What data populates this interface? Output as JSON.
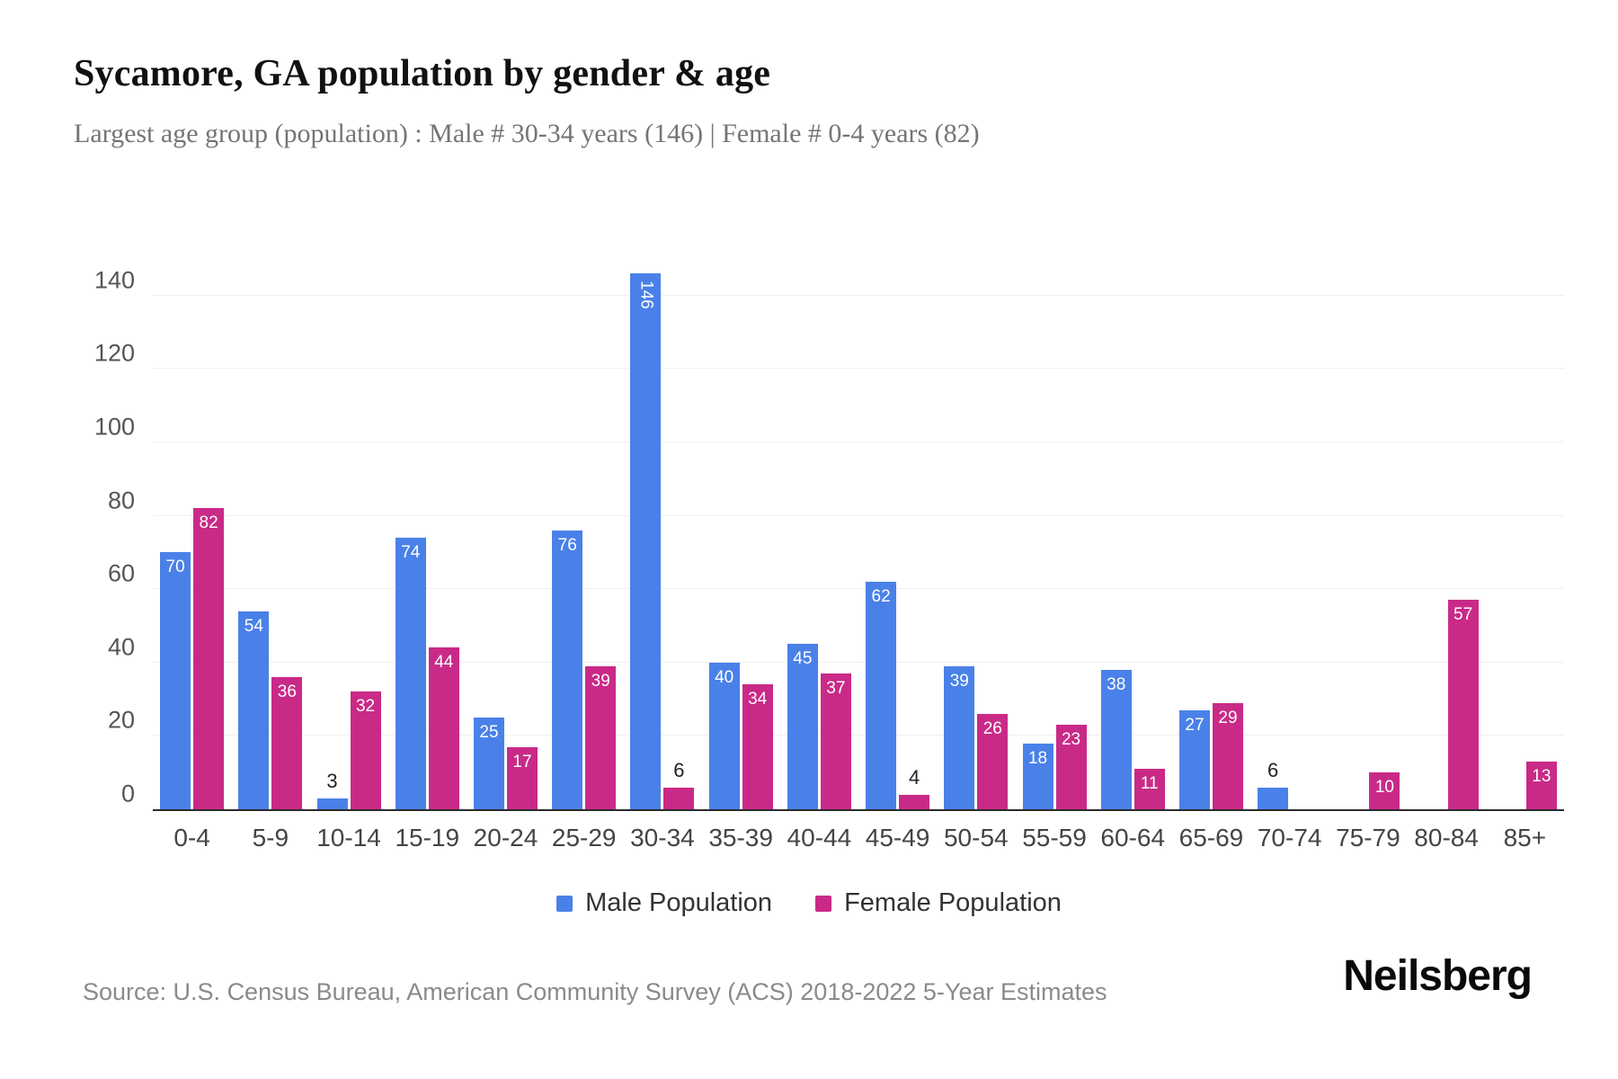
{
  "header": {
    "title": "Sycamore, GA population by gender & age",
    "subtitle": "Largest age group (population) : Male # 30-34 years (146) | Female # 0-4 years (82)"
  },
  "chart_data": {
    "type": "bar",
    "title": "Sycamore, GA population by gender & age",
    "categories": [
      "0-4",
      "5-9",
      "10-14",
      "15-19",
      "20-24",
      "25-29",
      "30-34",
      "35-39",
      "40-44",
      "45-49",
      "50-54",
      "55-59",
      "60-64",
      "65-69",
      "70-74",
      "75-79",
      "80-84",
      "85+"
    ],
    "series": [
      {
        "name": "Male Population",
        "color": "#4A81E8",
        "values": [
          70,
          54,
          3,
          74,
          25,
          76,
          146,
          40,
          45,
          62,
          39,
          18,
          38,
          27,
          6,
          0,
          0,
          0
        ]
      },
      {
        "name": "Female Population",
        "color": "#C92A87",
        "values": [
          82,
          36,
          32,
          44,
          17,
          39,
          6,
          34,
          37,
          4,
          26,
          23,
          11,
          29,
          0,
          10,
          57,
          13
        ]
      }
    ],
    "xlabel": "",
    "ylabel": "",
    "ylim": [
      0,
      150
    ],
    "yticks": [
      0,
      20,
      40,
      60,
      80,
      100,
      120,
      140
    ],
    "grid": true,
    "legend_position": "bottom"
  },
  "footer": {
    "source": "Source: U.S. Census Bureau, American Community Survey (ACS) 2018-2022 5-Year Estimates",
    "logo": "Neilsberg"
  },
  "colors": {
    "male": "#4A81E8",
    "female": "#C92A87",
    "grid": "#f0f0f0",
    "axis": "#2b2b2b",
    "tick_text": "#555555",
    "category_text": "#444444"
  }
}
